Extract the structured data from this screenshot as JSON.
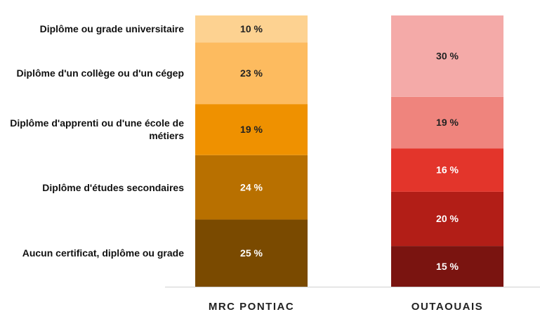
{
  "chart_data": {
    "type": "bar",
    "stacked": true,
    "categories": [
      "MRC PONTIAC",
      "OUTAOUAIS"
    ],
    "series": [
      {
        "name": "Aucun certificat, diplôme ou grade",
        "colors": [
          "#7a4a00",
          "#7a1410"
        ],
        "values": [
          25,
          15
        ],
        "value_labels": [
          "25 %",
          "15 %"
        ]
      },
      {
        "name": "Diplôme d'études secondaires",
        "colors": [
          "#b87000",
          "#b21e17"
        ],
        "values": [
          24,
          20
        ],
        "value_labels": [
          "24 %",
          "20 %"
        ]
      },
      {
        "name": "Diplôme d'apprenti ou d'une école de métiers",
        "colors": [
          "#ef9100",
          "#e3352b"
        ],
        "values": [
          19,
          16
        ],
        "value_labels": [
          "19 %",
          "16 %"
        ]
      },
      {
        "name": "Diplôme d'un collège ou d'un cégep",
        "colors": [
          "#fdbb5f",
          "#ef847d"
        ],
        "values": [
          23,
          19
        ],
        "value_labels": [
          "23 %",
          "19 %"
        ]
      },
      {
        "name": "Diplôme ou grade universitaire",
        "colors": [
          "#fdd291",
          "#f4aaa8"
        ],
        "values": [
          10,
          30
        ],
        "value_labels": [
          "10 %",
          "30 %"
        ]
      }
    ]
  }
}
